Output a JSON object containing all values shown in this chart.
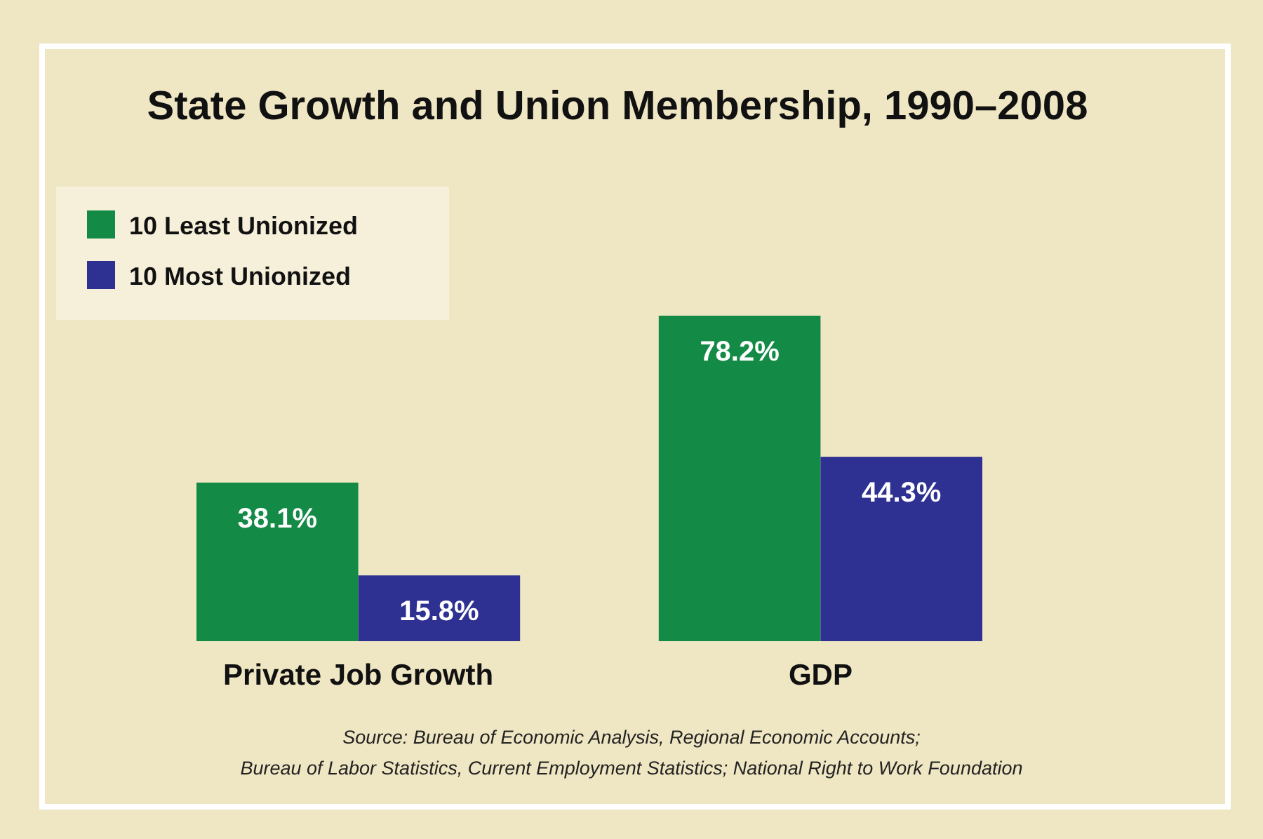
{
  "chart_data": {
    "type": "bar",
    "title": "State Growth and Union Membership, 1990–2008",
    "categories": [
      "Private Job Growth",
      "GDP"
    ],
    "series": [
      {
        "name": "10 Least Unionized",
        "color": "#138a45",
        "values": [
          38.1,
          78.2
        ],
        "value_labels": [
          "38.1%",
          "78.2%"
        ]
      },
      {
        "name": "10 Most Unionized",
        "color": "#2e3192",
        "values": [
          15.8,
          44.3
        ],
        "value_labels": [
          "15.8%",
          "44.3%"
        ]
      }
    ],
    "legend": "top left",
    "annotations": [
      "Source: Bureau of Economic Analysis, Regional Economic Accounts;",
      "Bureau of Labor Statistics, Current Employment Statistics; National Right to Work Foundation"
    ]
  }
}
